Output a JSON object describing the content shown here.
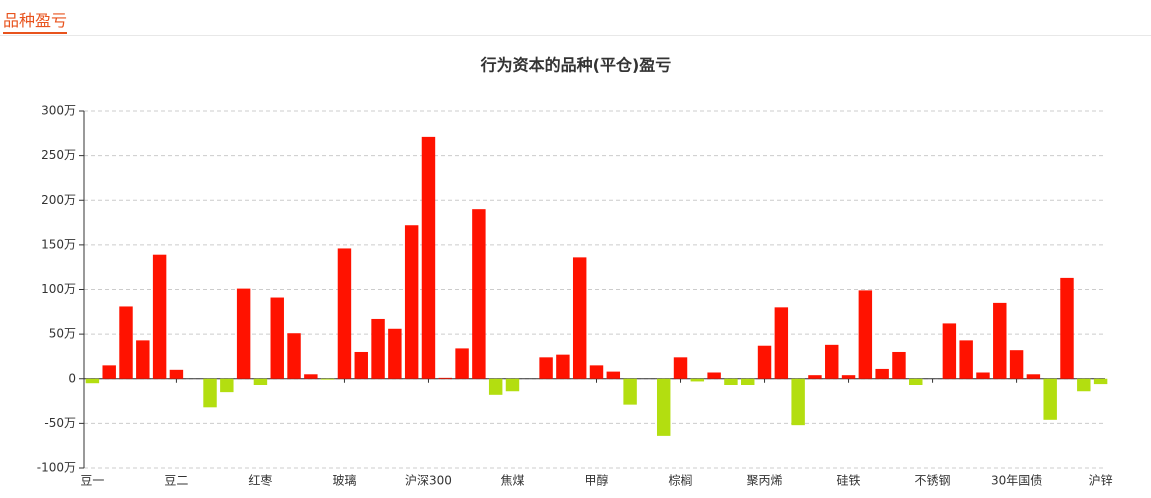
{
  "header": {
    "title": "品种盈亏"
  },
  "chart_data": {
    "type": "bar",
    "title": "行为资本的品种(平仓)盈亏",
    "categories": [
      "豆一",
      null,
      null,
      null,
      null,
      "豆二",
      null,
      null,
      null,
      null,
      "红枣",
      null,
      null,
      null,
      null,
      "玻璃",
      null,
      null,
      null,
      null,
      "沪深300",
      null,
      null,
      null,
      null,
      "焦煤",
      null,
      null,
      null,
      null,
      "甲醇",
      null,
      null,
      null,
      null,
      "棕榈",
      null,
      null,
      null,
      null,
      "聚丙烯",
      null,
      null,
      null,
      null,
      "硅铁",
      null,
      null,
      null,
      null,
      "不锈钢",
      null,
      null,
      null,
      null,
      "30年国债",
      null,
      null,
      null,
      null,
      "沪锌"
    ],
    "values": [
      -5,
      15,
      81,
      43,
      139,
      10,
      0,
      -32,
      -15,
      101,
      -7,
      91,
      51,
      5,
      -1,
      146,
      30,
      67,
      56,
      172,
      271,
      1,
      34,
      190,
      -18,
      -14,
      0,
      24,
      27,
      136,
      15,
      8,
      -29,
      0,
      -64,
      24,
      -3,
      7,
      -7,
      -7,
      37,
      80,
      -52,
      4,
      38,
      4,
      99,
      11,
      30,
      -7,
      0,
      62,
      43,
      7,
      85,
      32,
      5,
      -46,
      113,
      -14,
      -6
    ],
    "positive_color": "#ff1200",
    "negative_color": "#b3de10",
    "ylim": [
      -100,
      300
    ],
    "yticks": [
      {
        "value": -100,
        "label": "-100万"
      },
      {
        "value": -50,
        "label": "-50万"
      },
      {
        "value": 0,
        "label": "0"
      },
      {
        "value": 50,
        "label": "50万"
      },
      {
        "value": 100,
        "label": "100万"
      },
      {
        "value": 150,
        "label": "150万"
      },
      {
        "value": 200,
        "label": "200万"
      },
      {
        "value": 250,
        "label": "250万"
      },
      {
        "value": 300,
        "label": "300万"
      }
    ],
    "grid": true
  }
}
